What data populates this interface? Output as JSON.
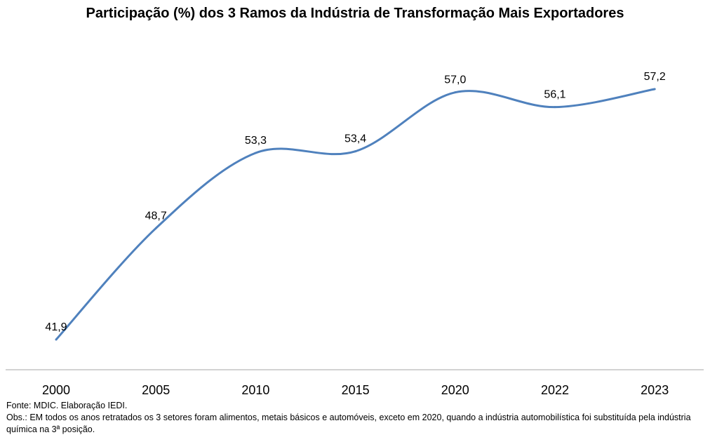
{
  "chart_data": {
    "type": "line",
    "title": "Participação (%) dos 3 Ramos da Indústria de Transformação Mais Exportadores",
    "categories": [
      "2000",
      "2005",
      "2010",
      "2015",
      "2020",
      "2022",
      "2023"
    ],
    "values": [
      41.9,
      48.7,
      53.3,
      53.4,
      57.0,
      56.1,
      57.2
    ],
    "data_labels": [
      "41,9",
      "48,7",
      "53,3",
      "53,4",
      "57,0",
      "56,1",
      "57,2"
    ],
    "xlabel": "",
    "ylabel": "",
    "ylim": [
      40,
      58
    ],
    "smooth": true,
    "grid": false,
    "legend": "none",
    "line_color": "#4f81bd"
  },
  "notes": {
    "source": "Fonte: MDIC. Elaboração IEDI.",
    "obs": "Obs.: EM todos os anos retratados os 3 setores foram alimentos, metais básicos e automóveis, exceto em 2020, quando a indústria automobilística foi substituída pela indústria química na 3ª posição."
  }
}
